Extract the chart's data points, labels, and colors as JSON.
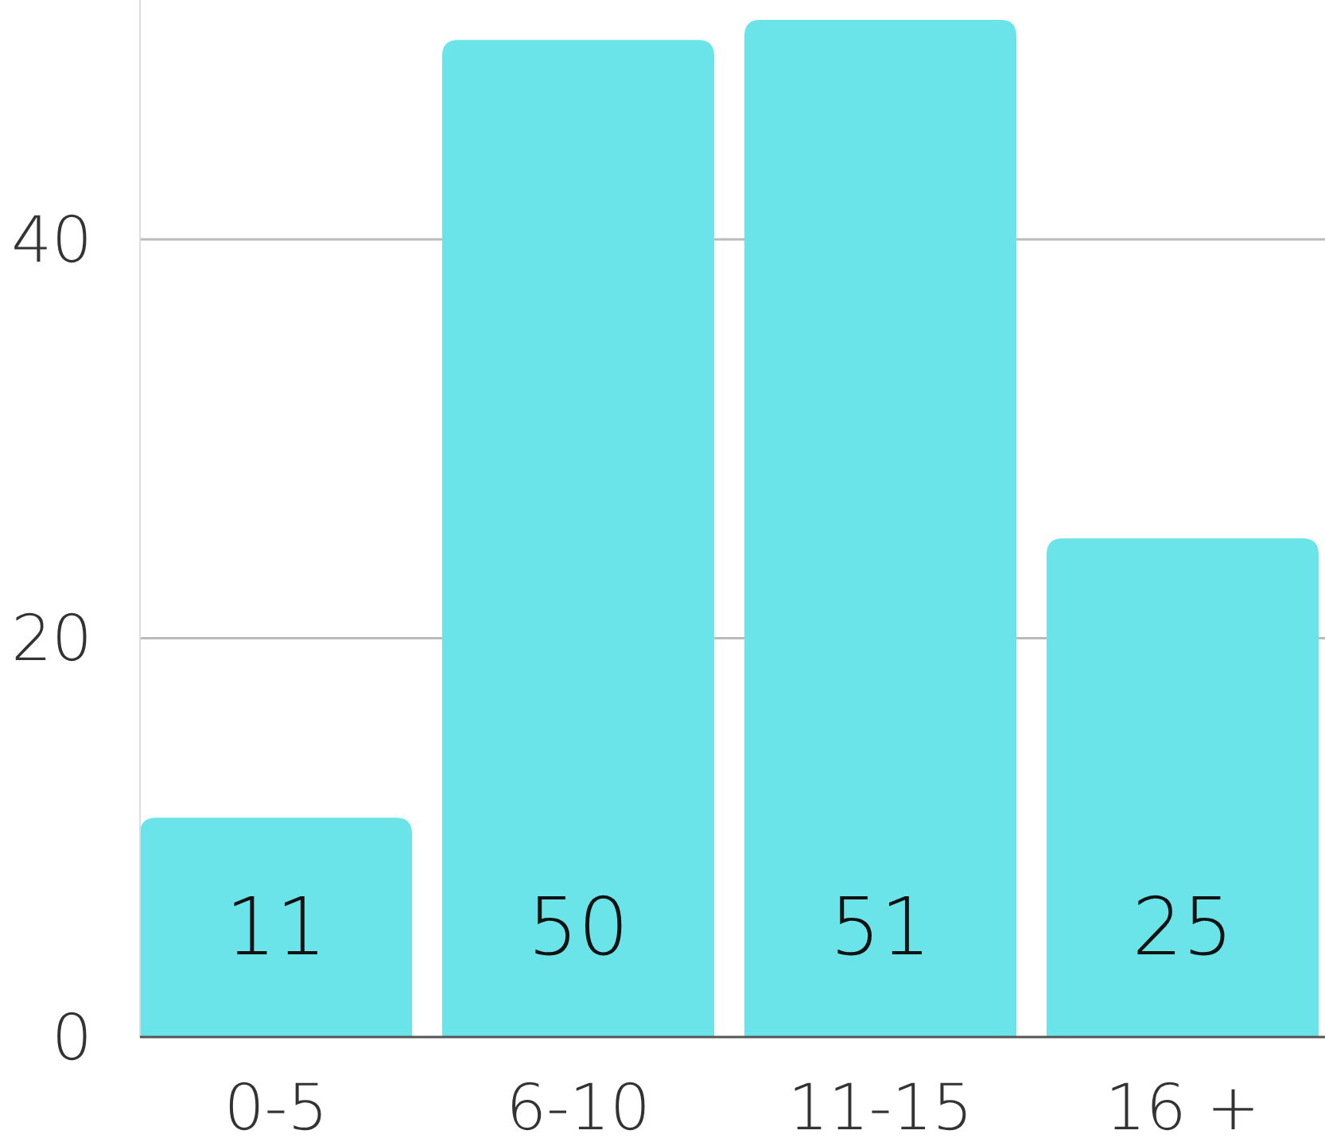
{
  "chart_data": {
    "type": "bar",
    "categories": [
      "0-5",
      "6-10",
      "11-15",
      "16 +"
    ],
    "values": [
      11,
      50,
      51,
      25
    ],
    "color": "#6ae4e9",
    "ylim": [
      0,
      52
    ],
    "yticks": [
      0,
      20,
      40
    ],
    "grid": "y",
    "data_labels": true
  }
}
